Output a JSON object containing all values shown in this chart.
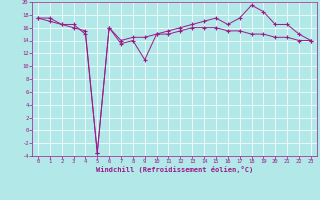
{
  "xlabel": "Windchill (Refroidissement éolien,°C)",
  "x": [
    0,
    1,
    2,
    3,
    4,
    5,
    6,
    7,
    8,
    9,
    10,
    11,
    12,
    13,
    14,
    15,
    16,
    17,
    18,
    19,
    20,
    21,
    22,
    23
  ],
  "line1": [
    17.5,
    17.5,
    16.5,
    16.5,
    15.0,
    -3.5,
    16.0,
    13.5,
    14.0,
    11.0,
    15.0,
    15.5,
    16.0,
    16.5,
    17.0,
    17.5,
    16.5,
    17.5,
    19.5,
    18.5,
    16.5,
    16.5,
    15.0,
    14.0
  ],
  "line2": [
    17.5,
    17.0,
    16.5,
    16.0,
    15.5,
    -3.5,
    16.0,
    14.0,
    14.5,
    14.5,
    15.0,
    15.0,
    15.5,
    16.0,
    16.0,
    16.0,
    15.5,
    15.5,
    15.0,
    15.0,
    14.5,
    14.5,
    14.0,
    14.0
  ],
  "line_color": "#9b1a8a",
  "bg_color": "#b2e8e8",
  "grid_color": "#ffffff",
  "ylim": [
    -4,
    20
  ],
  "xlim": [
    -0.5,
    23.5
  ],
  "yticks": [
    -4,
    -2,
    0,
    2,
    4,
    6,
    8,
    10,
    12,
    14,
    16,
    18,
    20
  ],
  "xticks": [
    0,
    1,
    2,
    3,
    4,
    5,
    6,
    7,
    8,
    9,
    10,
    11,
    12,
    13,
    14,
    15,
    16,
    17,
    18,
    19,
    20,
    21,
    22,
    23
  ]
}
